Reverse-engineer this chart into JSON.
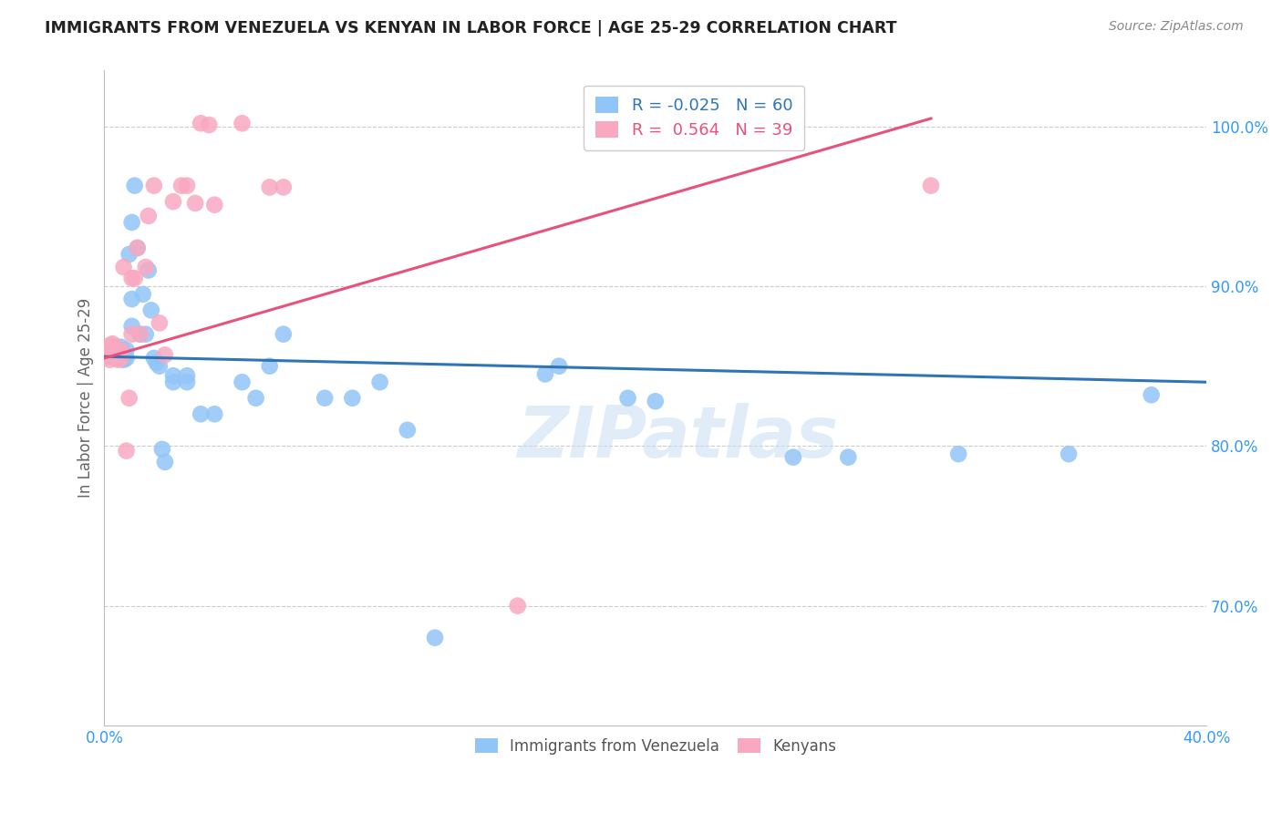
{
  "title": "IMMIGRANTS FROM VENEZUELA VS KENYAN IN LABOR FORCE | AGE 25-29 CORRELATION CHART",
  "source": "Source: ZipAtlas.com",
  "ylabel": "In Labor Force | Age 25-29",
  "xlim": [
    0.0,
    0.4
  ],
  "ylim": [
    0.625,
    1.035
  ],
  "xticks": [
    0.0,
    0.05,
    0.1,
    0.15,
    0.2,
    0.25,
    0.3,
    0.35,
    0.4
  ],
  "xtick_labels": [
    "0.0%",
    "",
    "",
    "",
    "",
    "",
    "",
    "",
    "40.0%"
  ],
  "ytick_positions": [
    0.7,
    0.8,
    0.9,
    1.0
  ],
  "ytick_labels": [
    "70.0%",
    "80.0%",
    "90.0%",
    "100.0%"
  ],
  "venezuela_color": "#92C5F7",
  "kenya_color": "#F9A8C0",
  "venezuela_R": -0.025,
  "venezuela_N": 60,
  "kenya_R": 0.564,
  "kenya_N": 39,
  "trendline_venezuela_color": "#2E75B6",
  "trendline_kenya_color": "#E8527A",
  "trendline_venezuela_x0": 0.0,
  "trendline_venezuela_y0": 0.856,
  "trendline_venezuela_x1": 0.4,
  "trendline_venezuela_y1": 0.84,
  "trendline_kenya_x0": 0.0,
  "trendline_kenya_y0": 0.855,
  "trendline_kenya_x1": 0.3,
  "trendline_kenya_y1": 1.005,
  "watermark_text": "ZIPatlas",
  "venezuela_x": [
    0.001,
    0.001,
    0.002,
    0.002,
    0.003,
    0.003,
    0.003,
    0.004,
    0.004,
    0.004,
    0.005,
    0.005,
    0.005,
    0.006,
    0.006,
    0.006,
    0.007,
    0.007,
    0.008,
    0.008,
    0.009,
    0.01,
    0.01,
    0.01,
    0.011,
    0.012,
    0.013,
    0.014,
    0.015,
    0.016,
    0.017,
    0.018,
    0.019,
    0.02,
    0.021,
    0.022,
    0.025,
    0.025,
    0.03,
    0.03,
    0.035,
    0.04,
    0.05,
    0.055,
    0.06,
    0.065,
    0.08,
    0.09,
    0.1,
    0.11,
    0.12,
    0.16,
    0.165,
    0.19,
    0.2,
    0.25,
    0.27,
    0.31,
    0.35,
    0.38
  ],
  "venezuela_y": [
    0.856,
    0.86,
    0.856,
    0.86,
    0.856,
    0.858,
    0.862,
    0.855,
    0.858,
    0.862,
    0.855,
    0.857,
    0.86,
    0.856,
    0.858,
    0.862,
    0.854,
    0.858,
    0.855,
    0.86,
    0.92,
    0.875,
    0.892,
    0.94,
    0.963,
    0.924,
    0.87,
    0.895,
    0.87,
    0.91,
    0.885,
    0.855,
    0.852,
    0.85,
    0.798,
    0.79,
    0.84,
    0.844,
    0.84,
    0.844,
    0.82,
    0.82,
    0.84,
    0.83,
    0.85,
    0.87,
    0.83,
    0.83,
    0.84,
    0.81,
    0.68,
    0.845,
    0.85,
    0.83,
    0.828,
    0.793,
    0.793,
    0.795,
    0.795,
    0.832
  ],
  "kenya_x": [
    0.001,
    0.001,
    0.002,
    0.002,
    0.002,
    0.003,
    0.003,
    0.003,
    0.004,
    0.004,
    0.005,
    0.005,
    0.006,
    0.006,
    0.007,
    0.008,
    0.009,
    0.01,
    0.01,
    0.011,
    0.012,
    0.013,
    0.015,
    0.016,
    0.018,
    0.02,
    0.022,
    0.025,
    0.028,
    0.03,
    0.033,
    0.035,
    0.038,
    0.04,
    0.05,
    0.06,
    0.065,
    0.15,
    0.3
  ],
  "kenya_y": [
    0.857,
    0.862,
    0.854,
    0.858,
    0.863,
    0.857,
    0.86,
    0.864,
    0.857,
    0.86,
    0.854,
    0.858,
    0.855,
    0.86,
    0.912,
    0.797,
    0.83,
    0.87,
    0.905,
    0.905,
    0.924,
    0.87,
    0.912,
    0.944,
    0.963,
    0.877,
    0.857,
    0.953,
    0.963,
    0.963,
    0.952,
    1.002,
    1.001,
    0.951,
    1.002,
    0.962,
    0.962,
    0.7,
    0.963
  ]
}
